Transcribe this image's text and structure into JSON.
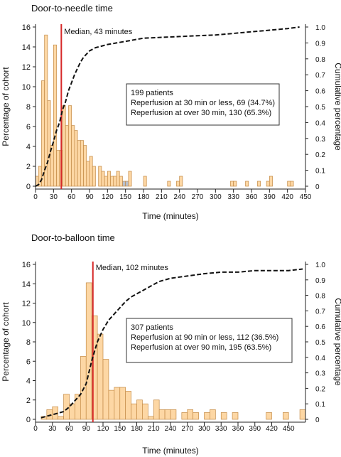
{
  "colors": {
    "bar_fill": "#FDD7A4",
    "bar_stroke": "#C48B47",
    "bar_gray": "#B9C0CC",
    "median_line": "#D62828",
    "curve": "#111111"
  },
  "chart_data": [
    {
      "type": "bar",
      "title": "Door-to-needle time",
      "xlabel": "Time (minutes)",
      "ylabel": "Percentage of cohort",
      "y2label": "Cumulative percentage",
      "xlim": [
        0,
        450
      ],
      "ylim": [
        0,
        16
      ],
      "y2lim": [
        0,
        1.0
      ],
      "bin_width": 5,
      "xticks": [
        0,
        30,
        60,
        90,
        120,
        150,
        180,
        210,
        240,
        270,
        300,
        330,
        360,
        390,
        420,
        450
      ],
      "yticks": [
        0,
        2,
        4,
        6,
        8,
        10,
        12,
        14,
        16
      ],
      "y2ticks": [
        "0",
        "0.1",
        "0.2",
        "0.3",
        "0.4",
        "0.5",
        "0.6",
        "0.7",
        "0.8",
        "0.9",
        "1.0"
      ],
      "bars": [
        {
          "x": 0,
          "y": 1.0
        },
        {
          "x": 5,
          "y": 2.0
        },
        {
          "x": 10,
          "y": 10.6
        },
        {
          "x": 15,
          "y": 15.2
        },
        {
          "x": 20,
          "y": 8.6
        },
        {
          "x": 25,
          "y": 4.1
        },
        {
          "x": 30,
          "y": 14.2
        },
        {
          "x": 35,
          "y": 3.6
        },
        {
          "x": 40,
          "y": 3.6
        },
        {
          "x": 45,
          "y": 8.1
        },
        {
          "x": 50,
          "y": 6.1
        },
        {
          "x": 55,
          "y": 8.1
        },
        {
          "x": 60,
          "y": 6.1
        },
        {
          "x": 65,
          "y": 5.6
        },
        {
          "x": 70,
          "y": 4.6
        },
        {
          "x": 75,
          "y": 4.6
        },
        {
          "x": 80,
          "y": 4.1
        },
        {
          "x": 85,
          "y": 2.5
        },
        {
          "x": 90,
          "y": 3.0
        },
        {
          "x": 95,
          "y": 2.0
        },
        {
          "x": 105,
          "y": 2.0
        },
        {
          "x": 110,
          "y": 1.5
        },
        {
          "x": 115,
          "y": 1.0
        },
        {
          "x": 120,
          "y": 1.5
        },
        {
          "x": 125,
          "y": 1.0
        },
        {
          "x": 130,
          "y": 1.0
        },
        {
          "x": 135,
          "y": 1.5
        },
        {
          "x": 140,
          "y": 1.0
        },
        {
          "x": 145,
          "y": 0.5,
          "gray": true
        },
        {
          "x": 150,
          "y": 0.5,
          "gray": true
        },
        {
          "x": 155,
          "y": 1.5
        },
        {
          "x": 180,
          "y": 1.0
        },
        {
          "x": 220,
          "y": 0.5
        },
        {
          "x": 235,
          "y": 0.5
        },
        {
          "x": 240,
          "y": 1.0
        },
        {
          "x": 325,
          "y": 0.5
        },
        {
          "x": 330,
          "y": 0.5
        },
        {
          "x": 350,
          "y": 0.5
        },
        {
          "x": 370,
          "y": 0.5
        },
        {
          "x": 385,
          "y": 0.5
        },
        {
          "x": 390,
          "y": 1.0
        },
        {
          "x": 420,
          "y": 0.5
        },
        {
          "x": 425,
          "y": 0.5
        }
      ],
      "cumulative": [
        [
          0,
          0.0
        ],
        [
          5,
          0.01
        ],
        [
          10,
          0.04
        ],
        [
          15,
          0.1
        ],
        [
          20,
          0.15
        ],
        [
          25,
          0.22
        ],
        [
          30,
          0.28
        ],
        [
          35,
          0.35
        ],
        [
          40,
          0.4
        ],
        [
          45,
          0.48
        ],
        [
          50,
          0.53
        ],
        [
          55,
          0.6
        ],
        [
          60,
          0.65
        ],
        [
          65,
          0.7
        ],
        [
          70,
          0.74
        ],
        [
          75,
          0.78
        ],
        [
          80,
          0.81
        ],
        [
          85,
          0.83
        ],
        [
          90,
          0.85
        ],
        [
          100,
          0.87
        ],
        [
          110,
          0.88
        ],
        [
          120,
          0.89
        ],
        [
          135,
          0.9
        ],
        [
          150,
          0.91
        ],
        [
          180,
          0.93
        ],
        [
          240,
          0.94
        ],
        [
          300,
          0.95
        ],
        [
          330,
          0.96
        ],
        [
          360,
          0.97
        ],
        [
          390,
          0.98
        ],
        [
          420,
          0.99
        ],
        [
          440,
          1.0
        ]
      ],
      "median": 43,
      "median_label": "Median, 43 minutes",
      "info_lines": [
        "199 patients",
        "Reperfusion at 30 min or less, 69 (34.7%)",
        "Reperfusion at over 30 min, 130 (65.3%)"
      ]
    },
    {
      "type": "bar",
      "title": "Door-to-balloon time",
      "xlabel": "Time (minutes)",
      "ylabel": "Percentage of cohort",
      "y2label": "Cumulative percentage",
      "xlim": [
        0,
        480
      ],
      "ylim": [
        0,
        16
      ],
      "y2lim": [
        0,
        1.0
      ],
      "bin_width": 10,
      "xticks": [
        0,
        30,
        60,
        90,
        120,
        150,
        180,
        210,
        240,
        270,
        300,
        330,
        360,
        390,
        420,
        450
      ],
      "yticks": [
        0,
        2,
        4,
        6,
        8,
        10,
        12,
        14,
        16
      ],
      "y2ticks": [
        "0",
        "0.1",
        "0.2",
        "0.3",
        "0.4",
        "0.5",
        "0.6",
        "0.7",
        "0.8",
        "0.9",
        "1.0"
      ],
      "bars": [
        {
          "x": 10,
          "y": 0.3
        },
        {
          "x": 20,
          "y": 1.0
        },
        {
          "x": 30,
          "y": 1.3
        },
        {
          "x": 40,
          "y": 0.3
        },
        {
          "x": 50,
          "y": 2.6
        },
        {
          "x": 60,
          "y": 1.6
        },
        {
          "x": 70,
          "y": 2.6
        },
        {
          "x": 80,
          "y": 6.5
        },
        {
          "x": 90,
          "y": 14.1
        },
        {
          "x": 100,
          "y": 10.7
        },
        {
          "x": 110,
          "y": 8.8
        },
        {
          "x": 120,
          "y": 6.2
        },
        {
          "x": 130,
          "y": 3.0
        },
        {
          "x": 140,
          "y": 3.3
        },
        {
          "x": 150,
          "y": 3.3
        },
        {
          "x": 160,
          "y": 2.9
        },
        {
          "x": 170,
          "y": 1.6
        },
        {
          "x": 180,
          "y": 2.0
        },
        {
          "x": 190,
          "y": 1.6
        },
        {
          "x": 200,
          "y": 0.3
        },
        {
          "x": 210,
          "y": 2.0
        },
        {
          "x": 220,
          "y": 1.0
        },
        {
          "x": 230,
          "y": 1.0
        },
        {
          "x": 240,
          "y": 1.0
        },
        {
          "x": 260,
          "y": 0.7
        },
        {
          "x": 270,
          "y": 1.0
        },
        {
          "x": 280,
          "y": 0.7
        },
        {
          "x": 300,
          "y": 0.7
        },
        {
          "x": 310,
          "y": 1.0
        },
        {
          "x": 330,
          "y": 0.7
        },
        {
          "x": 350,
          "y": 0.7
        },
        {
          "x": 410,
          "y": 0.7
        },
        {
          "x": 440,
          "y": 0.7
        },
        {
          "x": 470,
          "y": 1.0
        }
      ],
      "cumulative": [
        [
          10,
          0.01
        ],
        [
          20,
          0.02
        ],
        [
          30,
          0.03
        ],
        [
          40,
          0.04
        ],
        [
          50,
          0.05
        ],
        [
          60,
          0.08
        ],
        [
          70,
          0.12
        ],
        [
          80,
          0.16
        ],
        [
          90,
          0.23
        ],
        [
          100,
          0.38
        ],
        [
          110,
          0.5
        ],
        [
          120,
          0.58
        ],
        [
          130,
          0.64
        ],
        [
          140,
          0.68
        ],
        [
          150,
          0.72
        ],
        [
          160,
          0.76
        ],
        [
          170,
          0.79
        ],
        [
          180,
          0.81
        ],
        [
          190,
          0.83
        ],
        [
          200,
          0.85
        ],
        [
          210,
          0.87
        ],
        [
          220,
          0.89
        ],
        [
          240,
          0.91
        ],
        [
          260,
          0.92
        ],
        [
          280,
          0.93
        ],
        [
          300,
          0.94
        ],
        [
          330,
          0.95
        ],
        [
          360,
          0.95
        ],
        [
          390,
          0.96
        ],
        [
          420,
          0.96
        ],
        [
          450,
          0.96
        ],
        [
          475,
          0.97
        ]
      ],
      "median": 102,
      "median_label": "Median, 102 minutes",
      "info_lines": [
        "307 patients",
        "Reperfusion at 90 min or less, 112 (36.5%)",
        "Reperfusion at over 90 min, 195 (63.5%)"
      ]
    }
  ]
}
